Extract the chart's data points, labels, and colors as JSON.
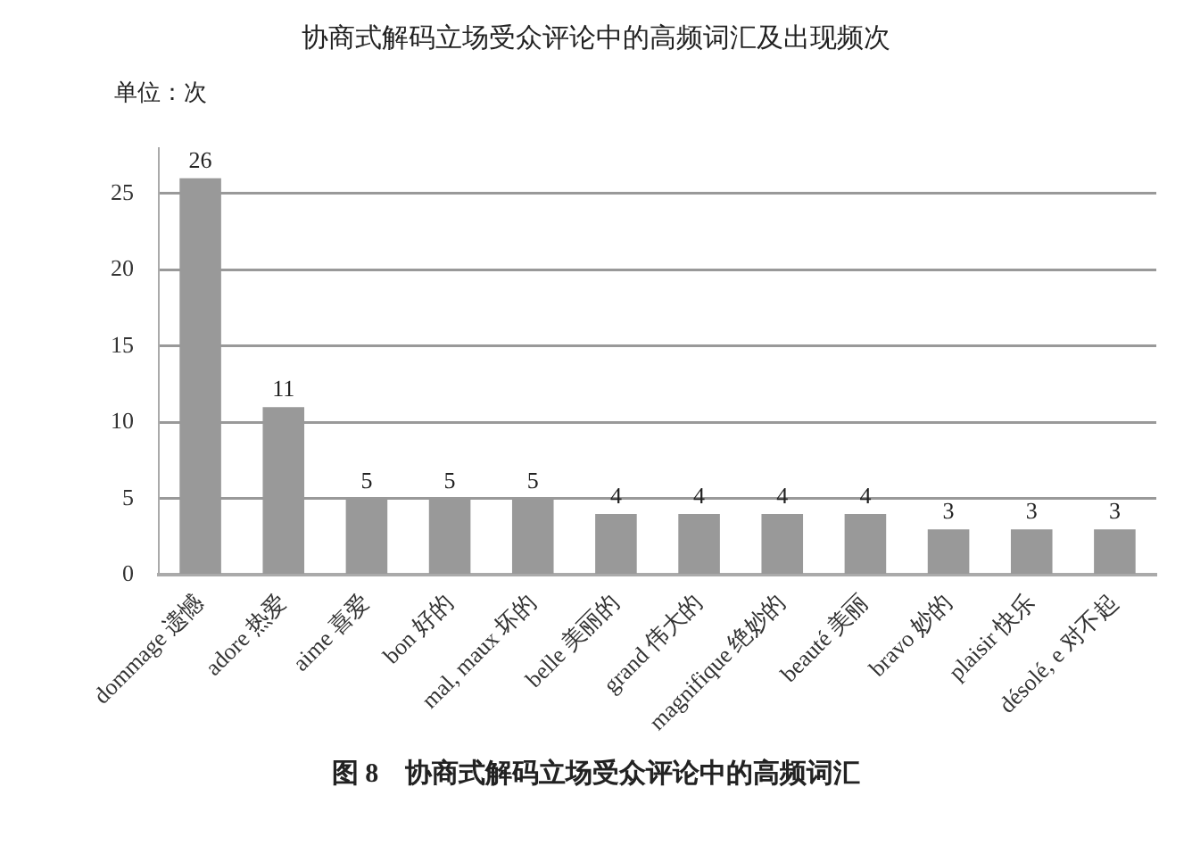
{
  "chart_data": {
    "type": "bar",
    "title": "协商式解码立场受众评论中的高频词汇及出现频次",
    "ylabel": "单位：次",
    "annotations": [
      "图 8　协商式解码立场受众评论中的高频词汇"
    ],
    "categories": [
      "dommage 遗憾",
      "adore 热爱",
      "aime 喜爱",
      "bon 好的",
      "mal, maux 坏的",
      "belle 美丽的",
      "grand 伟大的",
      "magnifique 绝妙的",
      "beauté 美丽",
      "bravo 妙的",
      "plaisir 快乐",
      "désolé, e 对不起"
    ],
    "values": [
      26,
      11,
      5,
      5,
      5,
      4,
      4,
      4,
      4,
      3,
      3,
      3
    ],
    "color": "#999999",
    "ylim": [
      0,
      28
    ],
    "yticks": [
      0,
      5,
      10,
      15,
      20,
      25
    ],
    "grid": "y",
    "data_labels": true,
    "legend": false
  }
}
